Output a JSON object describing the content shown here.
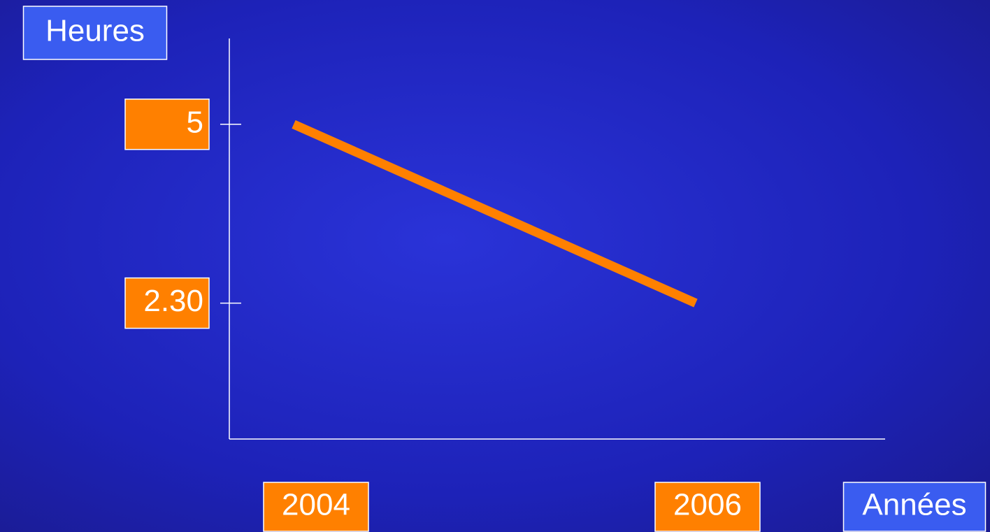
{
  "chart_data": {
    "type": "line",
    "y_label": "Heures",
    "x_label": "Années",
    "categories": [
      "2004",
      "2006"
    ],
    "values": [
      5,
      2.5
    ],
    "color": "#ff8000",
    "ylim": [
      0.6,
      6.2
    ],
    "yticks": [
      {
        "value": 2.5,
        "label": "2.30"
      },
      5
    ]
  }
}
